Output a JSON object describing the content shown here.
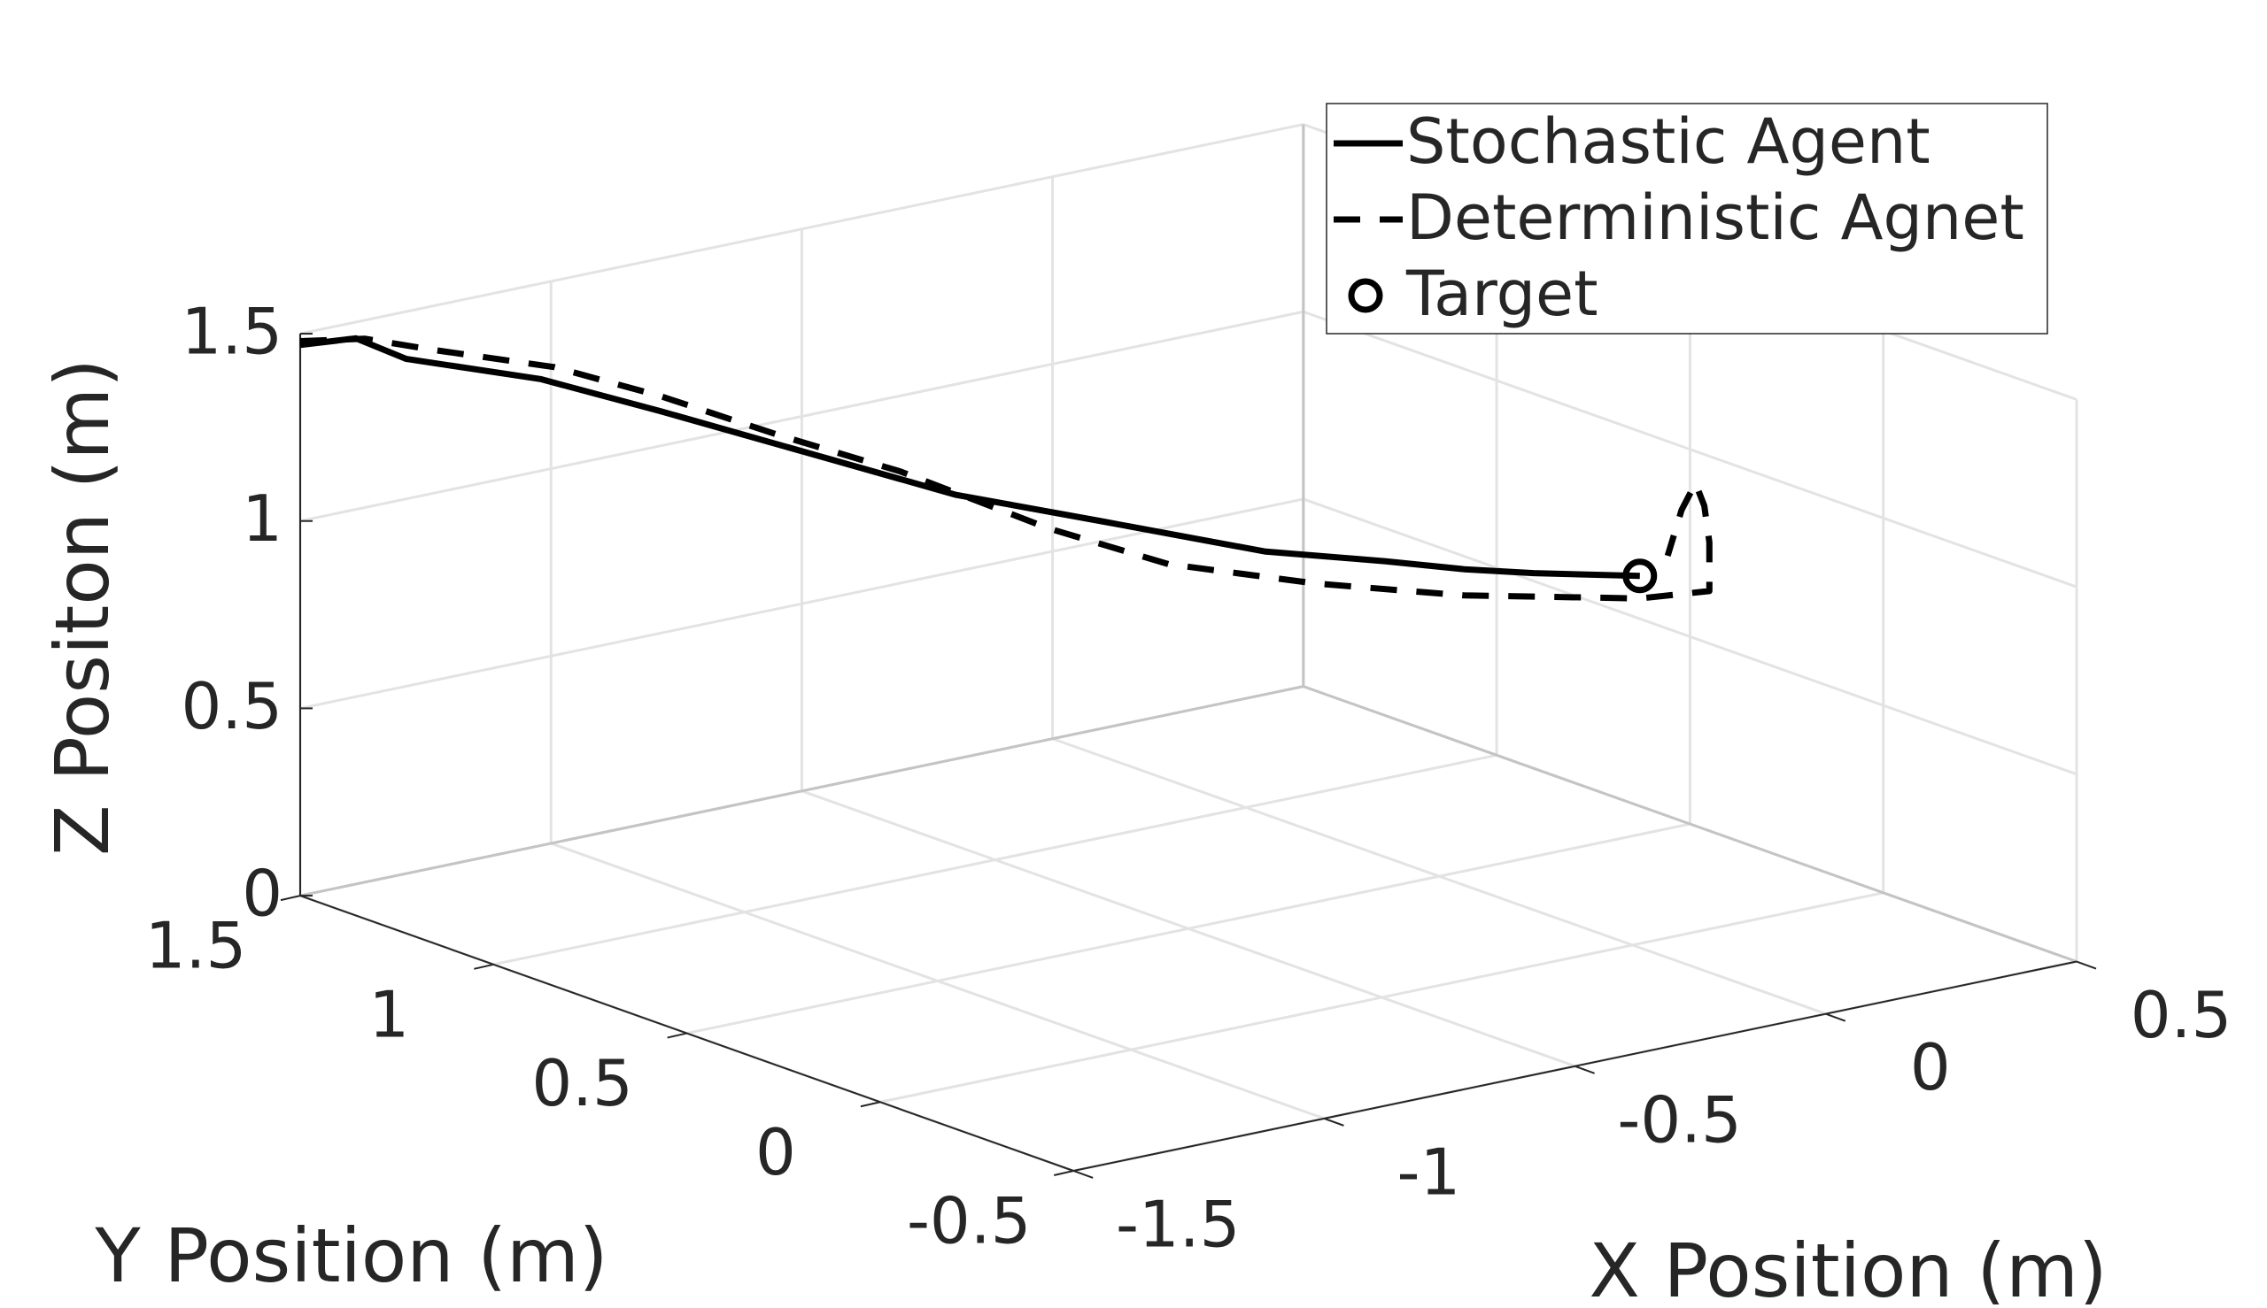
{
  "chart_data": {
    "type": "line3d",
    "xlabel": "X Position (m)",
    "ylabel": "Y Position (m)",
    "zlabel": "Z Positon (m)",
    "xlim": [
      -1.5,
      0.5
    ],
    "xticks": [
      -1.5,
      -1,
      -0.5,
      0,
      0.5
    ],
    "ylim": [
      -0.5,
      1.5
    ],
    "yticks": [
      -0.5,
      0,
      0.5,
      1,
      1.5
    ],
    "zlim": [
      0,
      1.5
    ],
    "zticks": [
      0,
      0.5,
      1,
      1.5
    ],
    "grid": true,
    "legend": "northeast",
    "series": [
      {
        "name": "Stochastic Agent",
        "color": "#000000",
        "style": "solid",
        "x": [
          -1.5,
          -1.42,
          -1.35,
          -1.16,
          -0.99,
          -0.78,
          -0.57,
          -0.36,
          -0.13,
          0.04,
          0.15,
          0.25,
          0.4
        ],
        "y": [
          1.5,
          1.46,
          1.42,
          1.32,
          1.23,
          1.12,
          1.01,
          0.9,
          0.78,
          0.69,
          0.63,
          0.58,
          0.5
        ],
        "z": [
          1.47,
          1.48,
          1.42,
          1.35,
          1.25,
          1.12,
          0.99,
          0.9,
          0.8,
          0.76,
          0.73,
          0.71,
          0.69
        ]
      },
      {
        "name": "Deterministic Agnet",
        "color": "#000000",
        "style": "dashed",
        "x": [
          -1.5,
          -1.41,
          -1.31,
          -1.14,
          -0.99,
          -0.82,
          -0.65,
          -0.44,
          -0.27,
          -0.06,
          0.15,
          0.4,
          0.5,
          0.5,
          0.49,
          0.48,
          0.46,
          0.44
        ],
        "y": [
          1.5,
          1.45,
          1.4,
          1.31,
          1.23,
          1.14,
          1.05,
          0.94,
          0.85,
          0.74,
          0.63,
          0.5,
          0.45,
          0.45,
          0.45,
          0.46,
          0.47,
          0.48
        ],
        "z": [
          1.48,
          1.48,
          1.44,
          1.38,
          1.29,
          1.17,
          1.06,
          0.89,
          0.78,
          0.71,
          0.66,
          0.63,
          0.64,
          0.77,
          0.87,
          0.93,
          0.86,
          0.74
        ]
      },
      {
        "name": "Target",
        "color": "#000000",
        "style": "marker",
        "x": [
          0.4
        ],
        "y": [
          0.5
        ],
        "z": [
          0.69
        ]
      }
    ]
  }
}
